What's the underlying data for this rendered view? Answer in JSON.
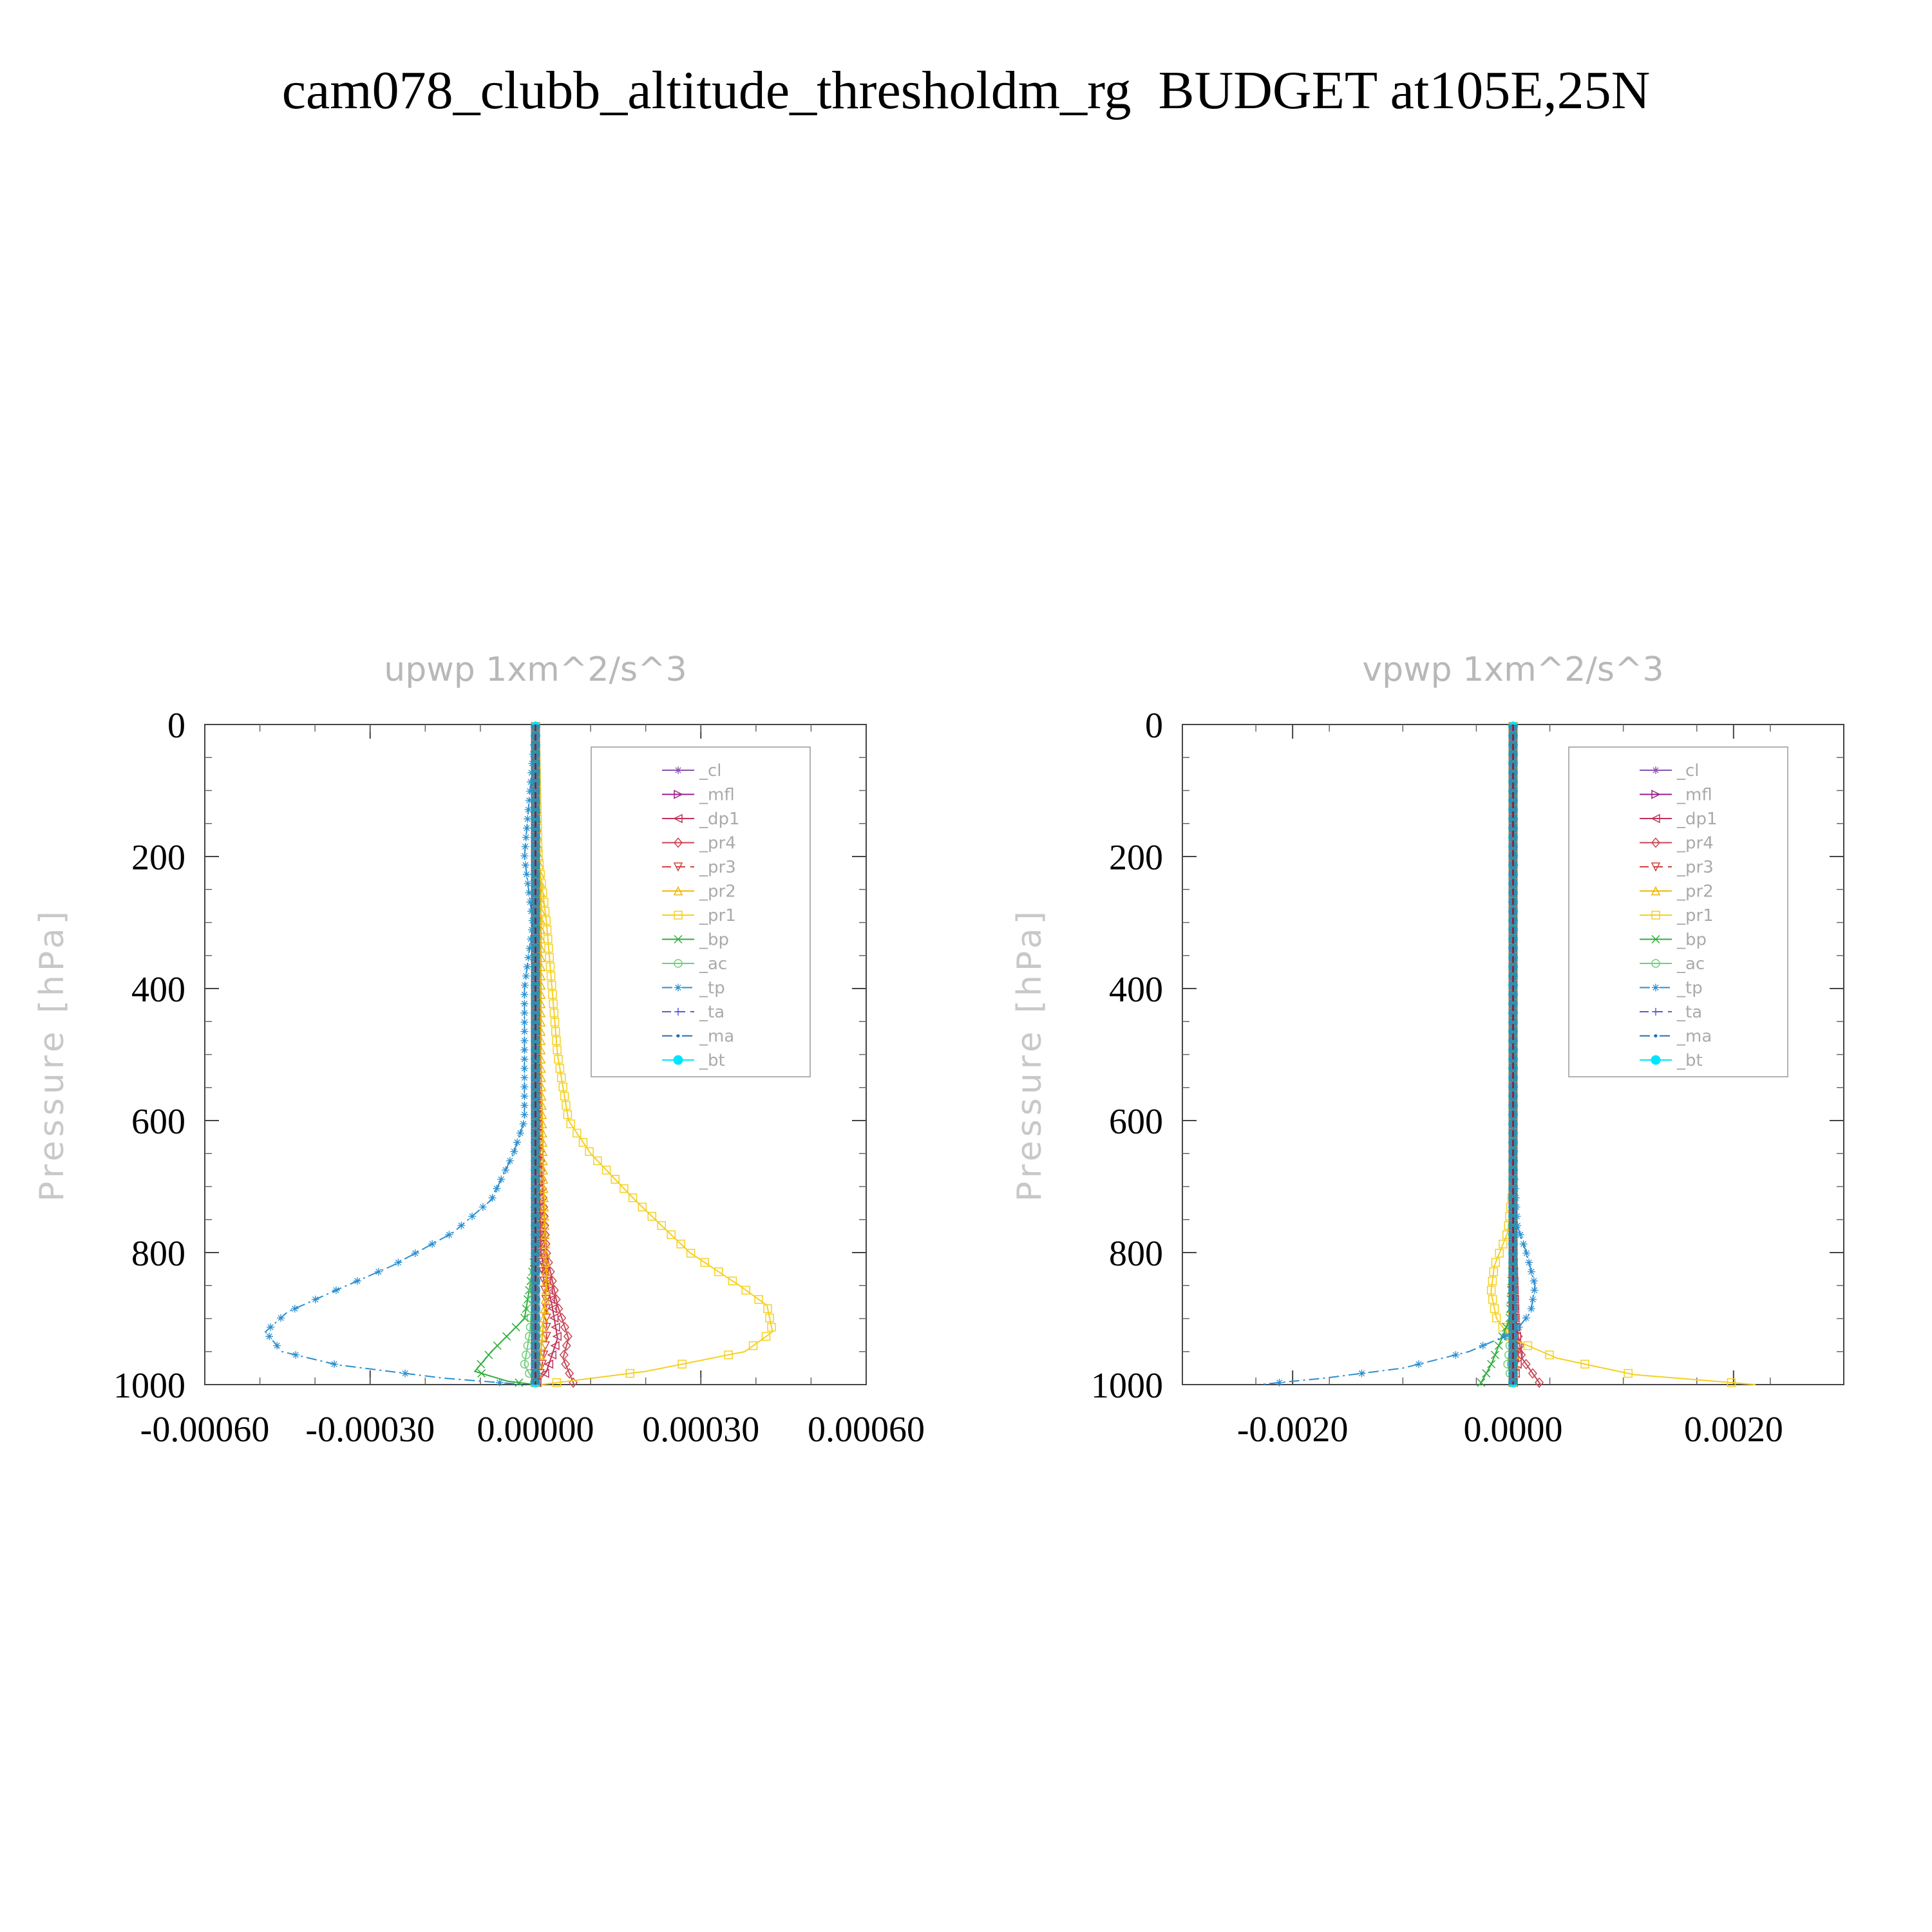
{
  "title": "cam078_clubb_altitude_thresholdm_rg  BUDGET at105E,25N",
  "chart_data": [
    {
      "type": "line",
      "title": "upwp   1xm^2/s^3",
      "xlabel": "",
      "ylabel": "Pressure [hPa]",
      "xlim": [
        -0.0006,
        0.0006
      ],
      "ylim": [
        1000,
        0
      ],
      "y_inverted": true,
      "xticks": [
        -0.0006,
        -0.0003,
        0.0,
        0.0003,
        0.0006
      ],
      "xtick_labels": [
        "-0.00060",
        "-0.00030",
        "0.00000",
        "0.00030",
        "0.00060"
      ],
      "yticks": [
        0,
        200,
        400,
        600,
        800,
        1000
      ],
      "ytick_labels": [
        "0",
        "200",
        "400",
        "600",
        "800",
        "1000"
      ],
      "legend_position": "top-right",
      "grid": false,
      "series": [
        {
          "name": "_cl",
          "color": "#8a4fb0",
          "marker": "star",
          "dash": "solid",
          "x": [
            0,
            0,
            0,
            0,
            0,
            0,
            0,
            0
          ],
          "y": [
            0,
            150,
            300,
            500,
            700,
            850,
            950,
            1000
          ]
        },
        {
          "name": "_mfl",
          "color": "#9b1f8a",
          "marker": "tri-right",
          "dash": "solid",
          "x": [
            0,
            0,
            0,
            0,
            0,
            0,
            0,
            0
          ],
          "y": [
            0,
            150,
            300,
            500,
            700,
            850,
            950,
            1000
          ]
        },
        {
          "name": "_dp1",
          "color": "#c0335a",
          "marker": "tri-left",
          "dash": "solid",
          "x": [
            0,
            0,
            0,
            5e-06,
            1e-05,
            3e-05,
            4e-05,
            2e-05,
            0
          ],
          "y": [
            0,
            200,
            400,
            600,
            800,
            880,
            930,
            980,
            1000
          ]
        },
        {
          "name": "_pr4",
          "color": "#c94455",
          "marker": "diamond",
          "dash": "solid",
          "x": [
            0,
            0,
            0,
            5e-06,
            2e-05,
            4e-05,
            6e-05,
            5e-05,
            7e-05
          ],
          "y": [
            0,
            200,
            400,
            600,
            800,
            880,
            930,
            960,
            1000
          ]
        },
        {
          "name": "_pr3",
          "color": "#d2433c",
          "marker": "tri-down",
          "dash": "dash",
          "x": [
            0,
            0,
            0,
            5e-06,
            1e-05,
            2e-05,
            2e-05,
            1e-05,
            0
          ],
          "y": [
            0,
            200,
            400,
            600,
            800,
            880,
            930,
            980,
            1000
          ]
        },
        {
          "name": "_pr2",
          "color": "#f0b400",
          "marker": "tri-up",
          "dash": "solid",
          "x": [
            0,
            3e-06,
            1e-05,
            1e-05,
            1e-05,
            1.5e-05,
            2e-05,
            1e-05,
            0
          ],
          "y": [
            0,
            150,
            250,
            350,
            500,
            700,
            850,
            950,
            1000
          ]
        },
        {
          "name": "_pr1",
          "color": "#f5d020",
          "marker": "square",
          "dash": "solid",
          "x": [
            0,
            5e-06,
            2e-05,
            3e-05,
            4e-05,
            6e-05,
            0.0001,
            0.00018,
            0.00028,
            0.00037,
            0.00042,
            0.00043,
            0.00038,
            0.0002,
            1e-05
          ],
          "y": [
            0,
            200,
            300,
            400,
            500,
            600,
            650,
            720,
            800,
            850,
            880,
            920,
            950,
            980,
            1000
          ]
        },
        {
          "name": "_bp",
          "color": "#2fae3c",
          "marker": "x",
          "dash": "solid",
          "x": [
            0,
            0,
            0,
            0,
            0,
            -2e-05,
            -8e-05,
            -0.00011,
            -5e-05,
            0
          ],
          "y": [
            0,
            200,
            400,
            600,
            800,
            900,
            950,
            980,
            995,
            1000
          ]
        },
        {
          "name": "_ac",
          "color": "#6fcf7a",
          "marker": "circle",
          "dash": "solid",
          "x": [
            0,
            0,
            0,
            0,
            0,
            -1e-05,
            -2e-05,
            0
          ],
          "y": [
            0,
            200,
            400,
            600,
            800,
            920,
            970,
            1000
          ]
        },
        {
          "name": "_tp",
          "color": "#2a8fd0",
          "marker": "asterisk",
          "dash": "dashdot",
          "x": [
            0,
            -2e-05,
            -5e-06,
            -2e-05,
            -2e-05,
            -2e-05,
            -4e-05,
            -8e-05,
            -0.00015,
            -0.00026,
            -0.00037,
            -0.00045,
            -0.00049,
            -0.00046,
            -0.00036,
            -0.00017,
            -2e-05
          ],
          "y": [
            0,
            200,
            300,
            400,
            500,
            600,
            650,
            720,
            770,
            820,
            860,
            890,
            920,
            950,
            970,
            990,
            1000
          ]
        },
        {
          "name": "_ta",
          "color": "#5a5ad8",
          "marker": "plus",
          "dash": "dash",
          "x": [
            0,
            0,
            0,
            0,
            0,
            0,
            0,
            0
          ],
          "y": [
            0,
            150,
            300,
            500,
            700,
            850,
            950,
            1000
          ]
        },
        {
          "name": "_ma",
          "color": "#1e6fb5",
          "marker": "dot",
          "dash": "dashdot",
          "x": [
            0,
            0,
            0,
            0,
            0,
            0,
            0,
            0
          ],
          "y": [
            0,
            150,
            300,
            500,
            700,
            850,
            950,
            1000
          ]
        },
        {
          "name": "_bt",
          "color": "#00e5ff",
          "marker": "dot-filled",
          "dash": "solid",
          "x": [
            0,
            0,
            0,
            0,
            0,
            0,
            0,
            0
          ],
          "y": [
            0,
            150,
            300,
            500,
            700,
            850,
            950,
            1000
          ]
        }
      ]
    },
    {
      "type": "line",
      "title": "vpwp   1xm^2/s^3",
      "xlabel": "",
      "ylabel": "Pressure [hPa]",
      "xlim": [
        -0.003,
        0.003
      ],
      "ylim": [
        1000,
        0
      ],
      "y_inverted": true,
      "xticks": [
        -0.002,
        0.0,
        0.002
      ],
      "xtick_labels": [
        "-0.0020",
        "0.0000",
        "0.0020"
      ],
      "yticks": [
        0,
        200,
        400,
        600,
        800,
        1000
      ],
      "ytick_labels": [
        "0",
        "200",
        "400",
        "600",
        "800",
        "1000"
      ],
      "legend_position": "top-right",
      "grid": false,
      "series": [
        {
          "name": "_cl",
          "color": "#8a4fb0",
          "marker": "star",
          "dash": "solid",
          "x": [
            0,
            0,
            0,
            0,
            0,
            0,
            0,
            0
          ],
          "y": [
            0,
            150,
            300,
            500,
            700,
            850,
            950,
            1000
          ]
        },
        {
          "name": "_mfl",
          "color": "#9b1f8a",
          "marker": "tri-right",
          "dash": "solid",
          "x": [
            0,
            0,
            0,
            0,
            0,
            0,
            0,
            0
          ],
          "y": [
            0,
            150,
            300,
            500,
            700,
            850,
            950,
            1000
          ]
        },
        {
          "name": "_dp1",
          "color": "#c0335a",
          "marker": "tri-left",
          "dash": "solid",
          "x": [
            0,
            0,
            0,
            0,
            0,
            2e-05,
            5e-05,
            0
          ],
          "y": [
            0,
            200,
            400,
            600,
            800,
            900,
            960,
            1000
          ]
        },
        {
          "name": "_pr4",
          "color": "#c94455",
          "marker": "diamond",
          "dash": "solid",
          "x": [
            0,
            0,
            0,
            0,
            0,
            2e-05,
            8e-05,
            0.00025
          ],
          "y": [
            0,
            200,
            400,
            600,
            800,
            900,
            960,
            1000
          ]
        },
        {
          "name": "_pr3",
          "color": "#d2433c",
          "marker": "tri-down",
          "dash": "dash",
          "x": [
            0,
            0,
            0,
            0,
            0,
            1e-05,
            2e-05,
            0
          ],
          "y": [
            0,
            200,
            400,
            600,
            800,
            900,
            960,
            1000
          ]
        },
        {
          "name": "_pr2",
          "color": "#f0b400",
          "marker": "tri-up",
          "dash": "solid",
          "x": [
            0,
            0,
            0,
            0,
            0,
            -2e-05,
            2e-05,
            0
          ],
          "y": [
            0,
            200,
            400,
            600,
            800,
            900,
            960,
            1000
          ]
        },
        {
          "name": "_pr1",
          "color": "#f5d020",
          "marker": "square",
          "dash": "solid",
          "x": [
            0,
            0,
            0,
            0,
            -5e-05,
            -0.00017,
            -0.0002,
            -0.00015,
            -2e-05,
            0.0004,
            0.0011,
            0.0022
          ],
          "y": [
            0,
            200,
            400,
            700,
            770,
            820,
            860,
            900,
            930,
            960,
            985,
            1000
          ]
        },
        {
          "name": "_bp",
          "color": "#2fae3c",
          "marker": "x",
          "dash": "solid",
          "x": [
            0,
            0,
            0,
            0,
            0,
            -3e-05,
            -0.0002,
            -0.0003
          ],
          "y": [
            0,
            200,
            400,
            600,
            800,
            900,
            970,
            1000
          ]
        },
        {
          "name": "_ac",
          "color": "#6fcf7a",
          "marker": "circle",
          "dash": "solid",
          "x": [
            0,
            0,
            0,
            0,
            0,
            0,
            -5e-05,
            0
          ],
          "y": [
            0,
            200,
            400,
            600,
            800,
            900,
            970,
            1000
          ]
        },
        {
          "name": "_tp",
          "color": "#2a8fd0",
          "marker": "asterisk",
          "dash": "dashdot",
          "x": [
            0,
            0,
            0,
            0,
            4e-05,
            0.00012,
            0.0002,
            0.00016,
            2e-05,
            -0.0004,
            -0.001,
            -0.0017,
            -0.0023
          ],
          "y": [
            0,
            200,
            400,
            650,
            760,
            800,
            850,
            890,
            920,
            950,
            975,
            990,
            1000
          ]
        },
        {
          "name": "_ta",
          "color": "#5a5ad8",
          "marker": "plus",
          "dash": "dash",
          "x": [
            0,
            0,
            0,
            0,
            0,
            0,
            0,
            0
          ],
          "y": [
            0,
            150,
            300,
            500,
            700,
            850,
            950,
            1000
          ]
        },
        {
          "name": "_ma",
          "color": "#1e6fb5",
          "marker": "dot",
          "dash": "dashdot",
          "x": [
            0,
            0,
            0,
            0,
            0,
            0,
            0,
            0
          ],
          "y": [
            0,
            150,
            300,
            500,
            700,
            850,
            950,
            1000
          ]
        },
        {
          "name": "_bt",
          "color": "#00e5ff",
          "marker": "dot-filled",
          "dash": "solid",
          "x": [
            0,
            0,
            0,
            0,
            0,
            0,
            0,
            0
          ],
          "y": [
            0,
            150,
            300,
            500,
            700,
            850,
            950,
            1000
          ]
        }
      ]
    }
  ]
}
